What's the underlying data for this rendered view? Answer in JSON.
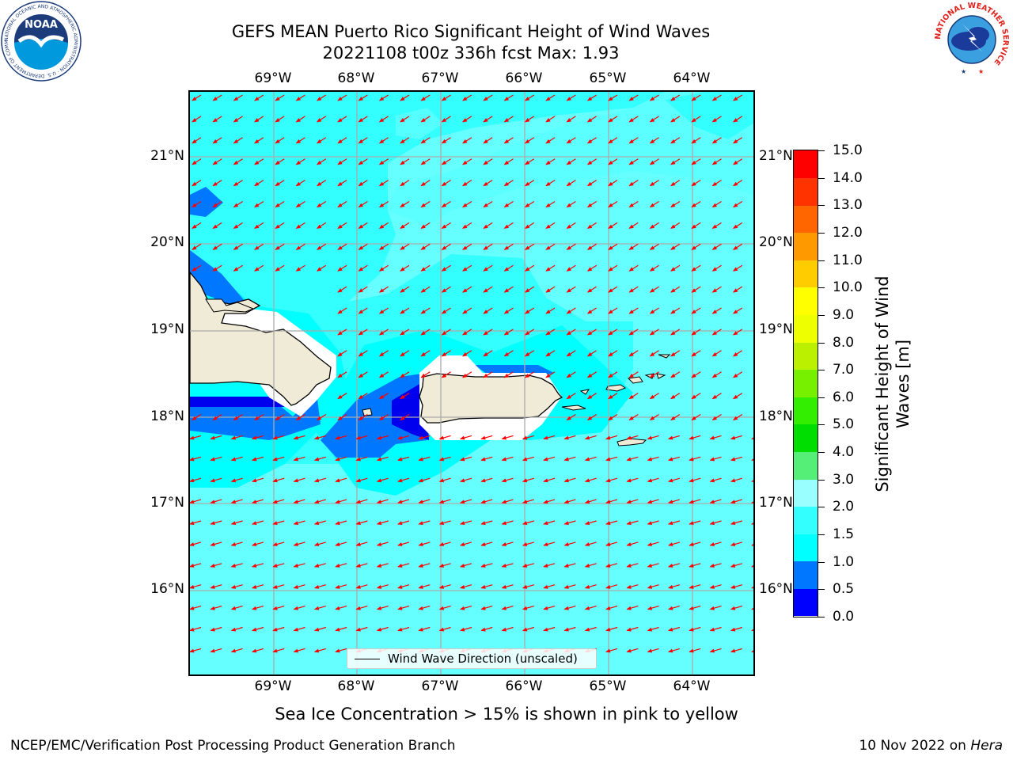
{
  "header": {
    "title_line1": "GEFS MEAN Puerto Rico Significant Height of Wind Waves",
    "title_line2": "20221108 t00z 336h fcst   Max: 1.93"
  },
  "logos": {
    "noaa_text": "NOAA",
    "noaa_ring_text": "NATIONAL OCEANIC AND ATMOSPHERIC ADMINISTRATION · U.S. DEPARTMENT OF COMMERCE",
    "nws_ring_text": "NATIONAL WEATHER SERVICE"
  },
  "axes": {
    "lon_labels": [
      "69°W",
      "68°W",
      "67°W",
      "66°W",
      "65°W",
      "64°W"
    ],
    "lat_labels": [
      "21°N",
      "20°N",
      "19°N",
      "18°N",
      "17°N",
      "16°N"
    ]
  },
  "legend": {
    "label": "Wind Wave Direction (unscaled)"
  },
  "colorbar": {
    "title": "Significant Height of Wind Waves [m]",
    "tick_labels": [
      "0.0",
      "0.5",
      "1.0",
      "1.5",
      "2.0",
      "3.0",
      "4.0",
      "5.0",
      "6.0",
      "7.0",
      "8.0",
      "9.0",
      "10.0",
      "11.0",
      "12.0",
      "13.0",
      "14.0",
      "15.0"
    ],
    "colors": [
      "#0000ff",
      "#0077ff",
      "#00ffff",
      "#33ffff",
      "#99ffff",
      "#55ee77",
      "#00dd00",
      "#33ee00",
      "#77f000",
      "#bbf000",
      "#eeff00",
      "#ffff00",
      "#ffcc00",
      "#ff9900",
      "#ff6600",
      "#ff3300",
      "#ff0000"
    ]
  },
  "map": {
    "land_color": "#efebd7",
    "wave_arrow_color": "#ff0000",
    "wave_direction": "toward southwest"
  },
  "notes": {
    "sea_ice": "Sea Ice Concentration > 15% is shown in pink to yellow"
  },
  "footer": {
    "left": "NCEP/EMC/Verification Post Processing Product Generation Branch",
    "right_date": "10 Nov 2022 on ",
    "right_host": "Hera"
  }
}
